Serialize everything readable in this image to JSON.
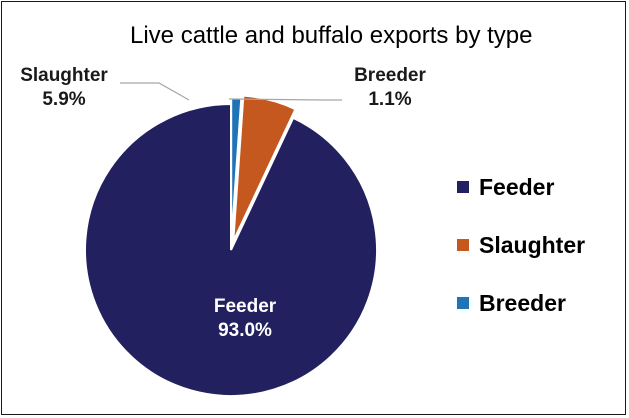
{
  "chart_data": {
    "type": "pie",
    "title": "Live cattle and buffalo exports by type",
    "categories": [
      "Feeder",
      "Slaughter",
      "Breeder"
    ],
    "values": [
      93.0,
      5.9,
      1.1
    ],
    "value_labels": [
      "93.0%",
      "5.9%",
      "1.1%"
    ],
    "colors": [
      "#23205f",
      "#c5581e",
      "#1f74b8"
    ],
    "legend_position": "right",
    "start_angle": "top, counter-clockwise",
    "exploded": true
  }
}
